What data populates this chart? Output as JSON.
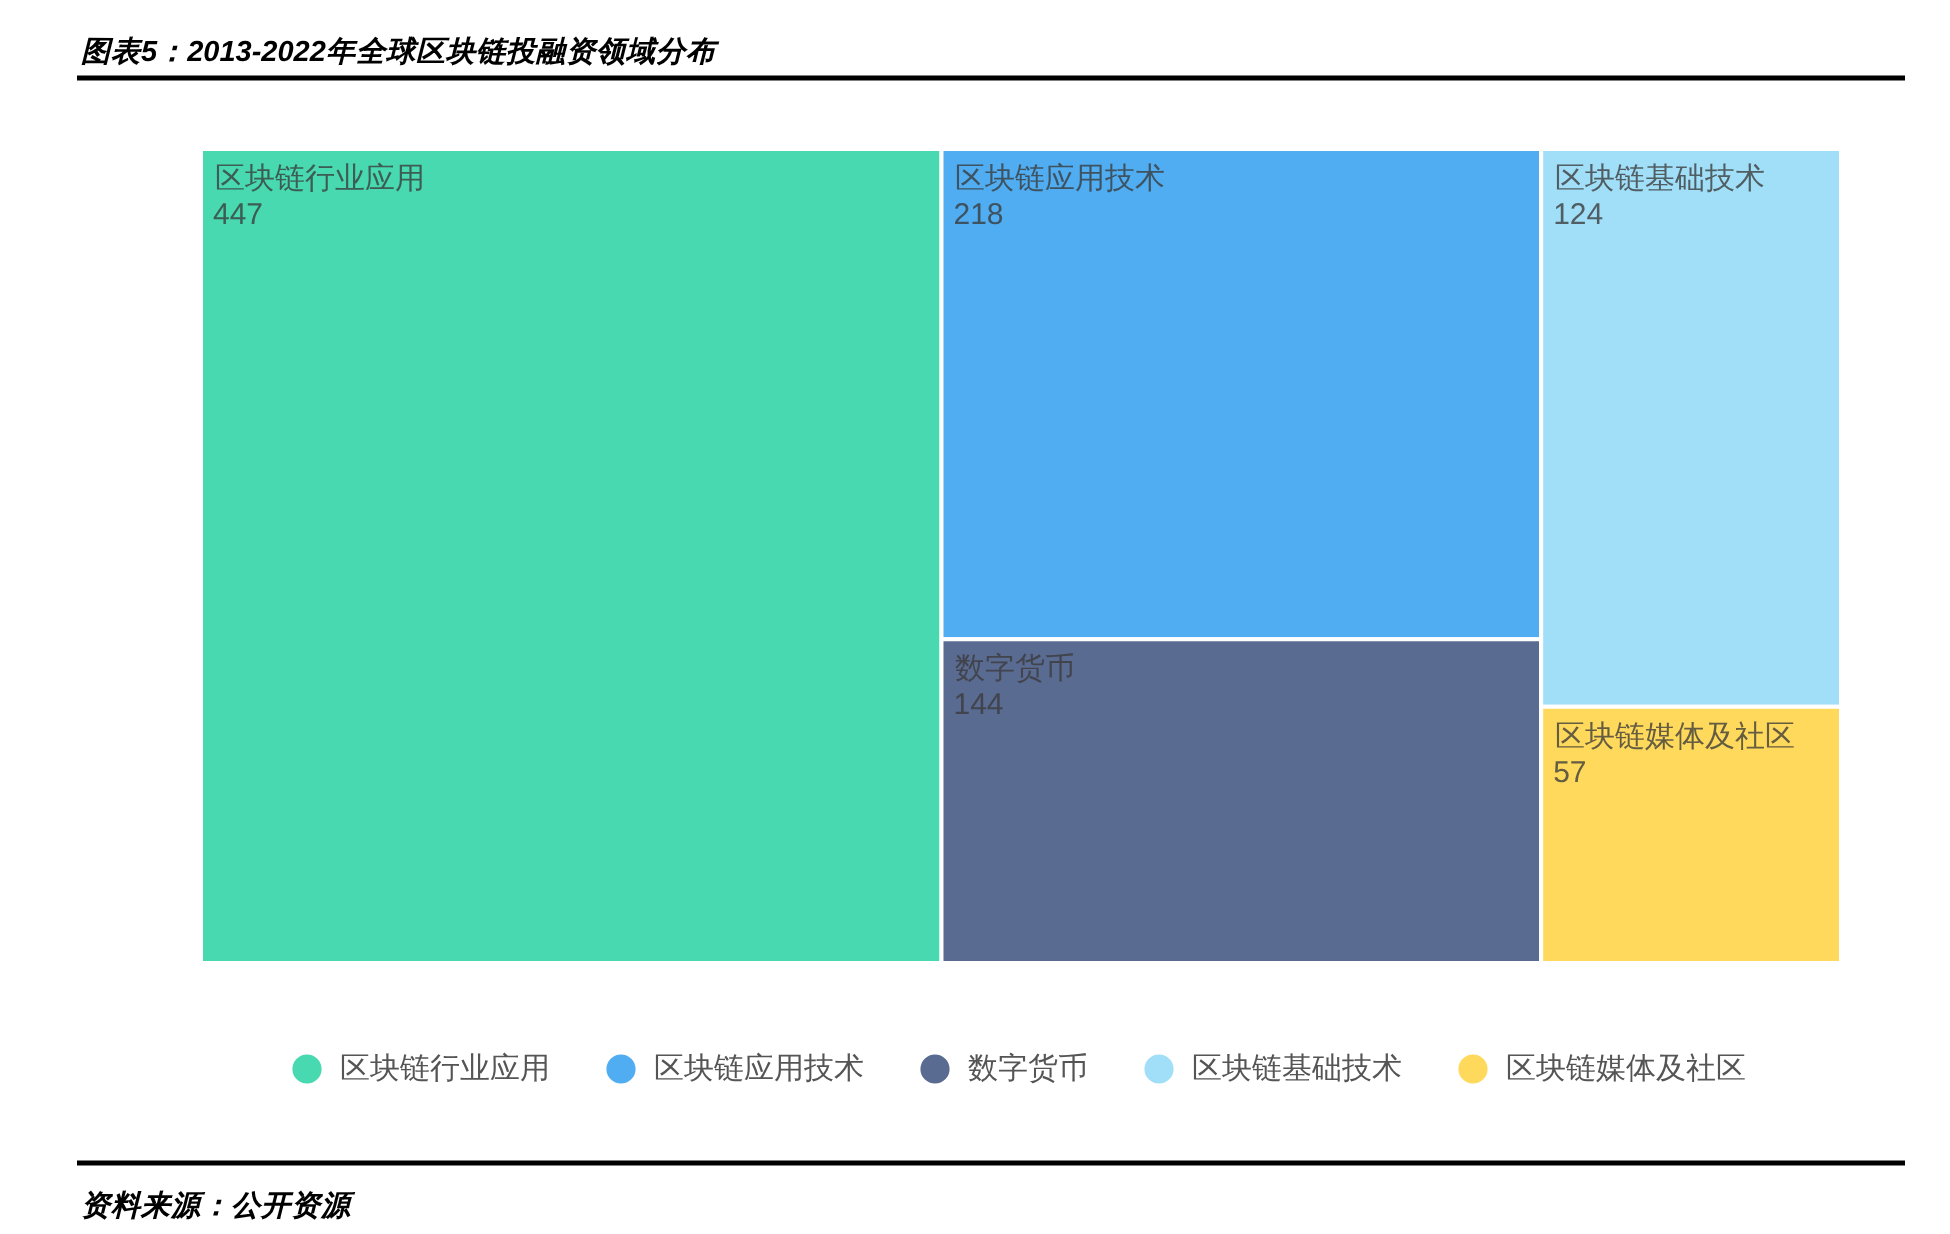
{
  "chart_data": {
    "type": "other",
    "title": "图表5：2013-2022年全球区块链投融资领域分布",
    "series": [
      {
        "name": "区块链行业应用",
        "color": "#48d9b0",
        "values": [
          447
        ]
      },
      {
        "name": "区块链应用技术",
        "color": "#50adf1",
        "values": [
          218
        ]
      },
      {
        "name": "数字货币",
        "color": "#5a6b91",
        "values": [
          144
        ]
      },
      {
        "name": "区块链基础技术",
        "color": "#a1dff8",
        "values": [
          124
        ]
      },
      {
        "name": "区块链媒体及社区",
        "color": "#ffd95c",
        "values": [
          57
        ]
      }
    ],
    "data_labels": true,
    "legend": "bottom",
    "annotations": [
      "资料来源：公开资源"
    ]
  }
}
